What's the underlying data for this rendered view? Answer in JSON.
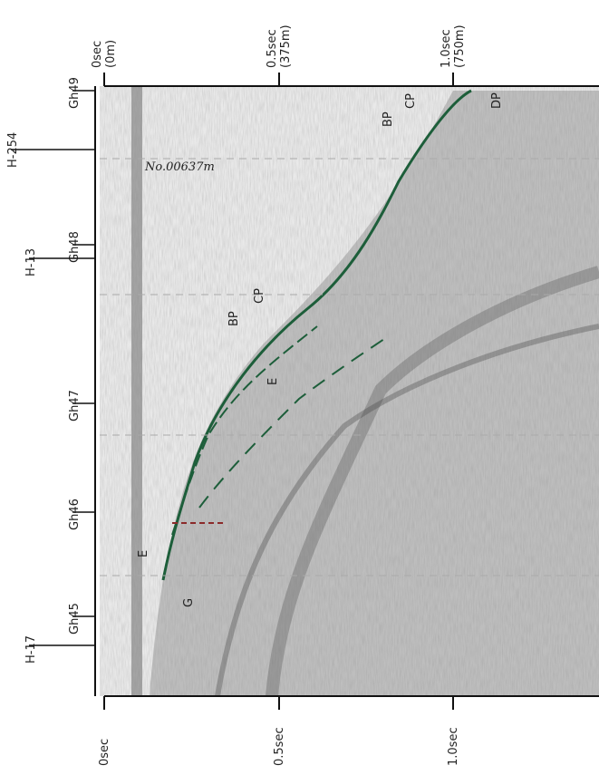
{
  "top_axis": {
    "labels": [
      {
        "time": "0sec",
        "depth": "(0m)"
      },
      {
        "time": "0.5sec",
        "depth": "(375m)"
      },
      {
        "time": "1.0sec",
        "depth": "(750m)"
      }
    ]
  },
  "bottom_axis": {
    "labels": [
      "0sec",
      "0.5sec",
      "1.0sec"
    ]
  },
  "stations": [
    "Gh49",
    "H-254",
    "Gh48",
    "H-13",
    "Gh47",
    "Gh46",
    "Gh45",
    "H-17"
  ],
  "handwritten_note": "No.00637m",
  "annotations": [
    "BP",
    "CP",
    "DP",
    "BP",
    "CP",
    "E",
    "E",
    "G"
  ]
}
